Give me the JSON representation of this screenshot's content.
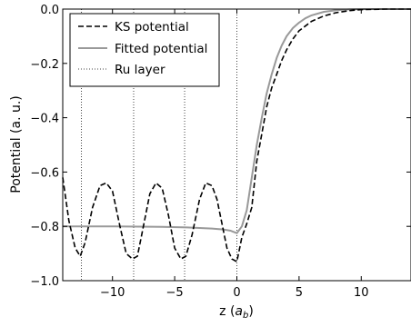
{
  "chart_data": {
    "type": "line",
    "title": "",
    "xlabel": "z (",
    "xlabel_sym": "a",
    "xlabel_sub": "b",
    "xlabel_close": ")",
    "ylabel": "Potential (a. u.)",
    "xlim": [
      -14,
      14
    ],
    "ylim": [
      -1.0,
      0.0
    ],
    "grid": false,
    "legend_position": "top-left",
    "x_ticks": [
      -10,
      -5,
      0,
      5,
      10
    ],
    "x_tick_labels": [
      "−10",
      "−5",
      "0",
      "5",
      "10"
    ],
    "y_ticks": [
      -1.0,
      -0.8,
      -0.6,
      -0.4,
      -0.2,
      0.0
    ],
    "y_tick_labels": [
      "−1.0",
      "−0.8",
      "−0.6",
      "−0.4",
      "−0.2",
      "0.0"
    ],
    "series": [
      {
        "name": "KS potential",
        "style": "dashed",
        "color": "#000000",
        "x": [
          -14,
          -13.5,
          -13.0,
          -12.6,
          -12.2,
          -11.6,
          -11.0,
          -10.5,
          -10.0,
          -9.4,
          -8.9,
          -8.4,
          -8.0,
          -7.6,
          -7.0,
          -6.5,
          -6.0,
          -5.5,
          -5.0,
          -4.5,
          -4.1,
          -3.6,
          -3.0,
          -2.5,
          -2.0,
          -1.6,
          -1.2,
          -0.8,
          -0.4,
          0.0,
          0.4,
          0.8,
          1.2,
          1.6,
          2.0,
          2.4,
          2.8,
          3.2,
          3.6,
          4.0,
          4.5,
          5.0,
          6.0,
          7.0,
          8.0,
          9.0,
          10.0,
          11.0,
          12.0,
          14.0
        ],
        "y": [
          -0.62,
          -0.78,
          -0.88,
          -0.91,
          -0.86,
          -0.73,
          -0.65,
          -0.64,
          -0.67,
          -0.8,
          -0.9,
          -0.92,
          -0.91,
          -0.82,
          -0.68,
          -0.64,
          -0.66,
          -0.76,
          -0.88,
          -0.92,
          -0.91,
          -0.83,
          -0.7,
          -0.64,
          -0.65,
          -0.7,
          -0.79,
          -0.88,
          -0.92,
          -0.93,
          -0.84,
          -0.79,
          -0.73,
          -0.56,
          -0.46,
          -0.36,
          -0.29,
          -0.24,
          -0.19,
          -0.15,
          -0.11,
          -0.08,
          -0.045,
          -0.025,
          -0.013,
          -0.006,
          -0.002,
          -0.001,
          0.0,
          0.0
        ]
      },
      {
        "name": "Fitted potential",
        "style": "solid",
        "color": "#999999",
        "x": [
          -14,
          -10,
          -6,
          -4,
          -2,
          -1.0,
          -0.5,
          0.0,
          0.4,
          0.8,
          1.2,
          1.6,
          2.0,
          2.4,
          2.8,
          3.2,
          3.6,
          4.0,
          4.5,
          5.0,
          5.5,
          6.0,
          7.0,
          8.0,
          9.0,
          10.0,
          11.0,
          12.0,
          14.0
        ],
        "y": [
          -0.8,
          -0.8,
          -0.802,
          -0.804,
          -0.808,
          -0.812,
          -0.816,
          -0.825,
          -0.8,
          -0.74,
          -0.62,
          -0.5,
          -0.4,
          -0.31,
          -0.24,
          -0.18,
          -0.135,
          -0.1,
          -0.07,
          -0.05,
          -0.034,
          -0.023,
          -0.01,
          -0.004,
          -0.0015,
          -0.0005,
          0.0,
          0.0,
          0.0
        ]
      },
      {
        "name": "Ru layer",
        "style": "dotted",
        "color": "#444444",
        "x_positions": [
          -12.5,
          -8.3,
          -4.2,
          0.0
        ]
      }
    ]
  }
}
